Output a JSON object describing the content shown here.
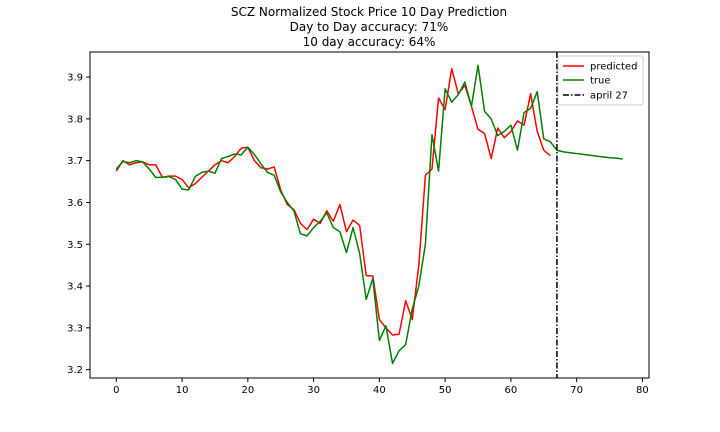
{
  "chart_data": {
    "type": "line",
    "title_lines": [
      "SCZ Normalized Stock Price 10 Day Prediction",
      "Day to Day accuracy: 71%",
      "10 day accuracy: 64%"
    ],
    "xlabel": "",
    "ylabel": "",
    "xlim": [
      -4,
      81
    ],
    "ylim": [
      3.18,
      3.96
    ],
    "xticks": [
      0,
      10,
      20,
      30,
      40,
      50,
      60,
      70,
      80
    ],
    "yticks": [
      3.2,
      3.3,
      3.4,
      3.5,
      3.6,
      3.7,
      3.8,
      3.9
    ],
    "grid": false,
    "legend_position": "top-right",
    "series": [
      {
        "name": "predicted",
        "color": "#ff0000",
        "x": [
          0,
          1,
          2,
          3,
          4,
          5,
          6,
          7,
          8,
          9,
          10,
          11,
          12,
          13,
          14,
          15,
          16,
          17,
          18,
          19,
          20,
          21,
          22,
          23,
          24,
          25,
          26,
          27,
          28,
          29,
          30,
          31,
          32,
          33,
          34,
          35,
          36,
          37,
          38,
          39,
          40,
          41,
          42,
          43,
          44,
          45,
          46,
          47,
          48,
          49,
          50,
          51,
          52,
          53,
          54,
          55,
          56,
          57,
          58,
          59,
          60,
          61,
          62,
          63,
          64,
          65,
          66,
          67
        ],
        "y": [
          3.675,
          3.7,
          3.69,
          3.695,
          3.697,
          3.69,
          3.69,
          3.66,
          3.663,
          3.663,
          3.655,
          3.635,
          3.645,
          3.66,
          3.675,
          3.69,
          3.7,
          3.695,
          3.71,
          3.73,
          3.732,
          3.7,
          3.683,
          3.68,
          3.685,
          3.63,
          3.595,
          3.583,
          3.55,
          3.535,
          3.56,
          3.55,
          3.58,
          3.555,
          3.595,
          3.53,
          3.558,
          3.545,
          3.425,
          3.424,
          3.32,
          3.3,
          3.283,
          3.285,
          3.365,
          3.32,
          3.45,
          3.665,
          3.68,
          3.85,
          3.822,
          3.92,
          3.86,
          3.88,
          3.83,
          3.775,
          3.765,
          3.705,
          3.778,
          3.755,
          3.77,
          3.795,
          3.785,
          3.86,
          3.77,
          3.725,
          3.712,
          null
        ]
      },
      {
        "name": "true",
        "color": "#008000",
        "x": [
          0,
          1,
          2,
          3,
          4,
          5,
          6,
          7,
          8,
          9,
          10,
          11,
          12,
          13,
          14,
          15,
          16,
          17,
          18,
          19,
          20,
          21,
          22,
          23,
          24,
          25,
          26,
          27,
          28,
          29,
          30,
          31,
          32,
          33,
          34,
          35,
          36,
          37,
          38,
          39,
          40,
          41,
          42,
          43,
          44,
          45,
          46,
          47,
          48,
          49,
          50,
          51,
          52,
          53,
          54,
          55,
          56,
          57,
          58,
          59,
          60,
          61,
          62,
          63,
          64,
          65,
          66,
          67,
          68,
          69,
          70,
          71,
          72,
          73,
          74,
          75,
          76,
          77
        ],
        "y": [
          3.68,
          3.698,
          3.695,
          3.7,
          3.697,
          3.68,
          3.66,
          3.66,
          3.662,
          3.655,
          3.632,
          3.63,
          3.662,
          3.672,
          3.675,
          3.67,
          3.705,
          3.71,
          3.716,
          3.714,
          3.732,
          3.715,
          3.692,
          3.672,
          3.665,
          3.625,
          3.6,
          3.58,
          3.525,
          3.52,
          3.54,
          3.555,
          3.575,
          3.54,
          3.53,
          3.48,
          3.54,
          3.478,
          3.368,
          3.418,
          3.27,
          3.305,
          3.215,
          3.245,
          3.26,
          3.345,
          3.4,
          3.5,
          3.762,
          3.675,
          3.872,
          3.84,
          3.858,
          3.888,
          3.83,
          3.928,
          3.818,
          3.8,
          3.76,
          3.77,
          3.785,
          3.725,
          3.815,
          3.825,
          3.865,
          3.752,
          3.745,
          3.725,
          3.721,
          3.719,
          3.717,
          3.715,
          3.713,
          3.711,
          3.709,
          3.707,
          3.706,
          3.704
        ]
      }
    ],
    "vline": {
      "name": "april 27",
      "x": 67,
      "color": "#000000",
      "style": "dash-dot"
    }
  }
}
